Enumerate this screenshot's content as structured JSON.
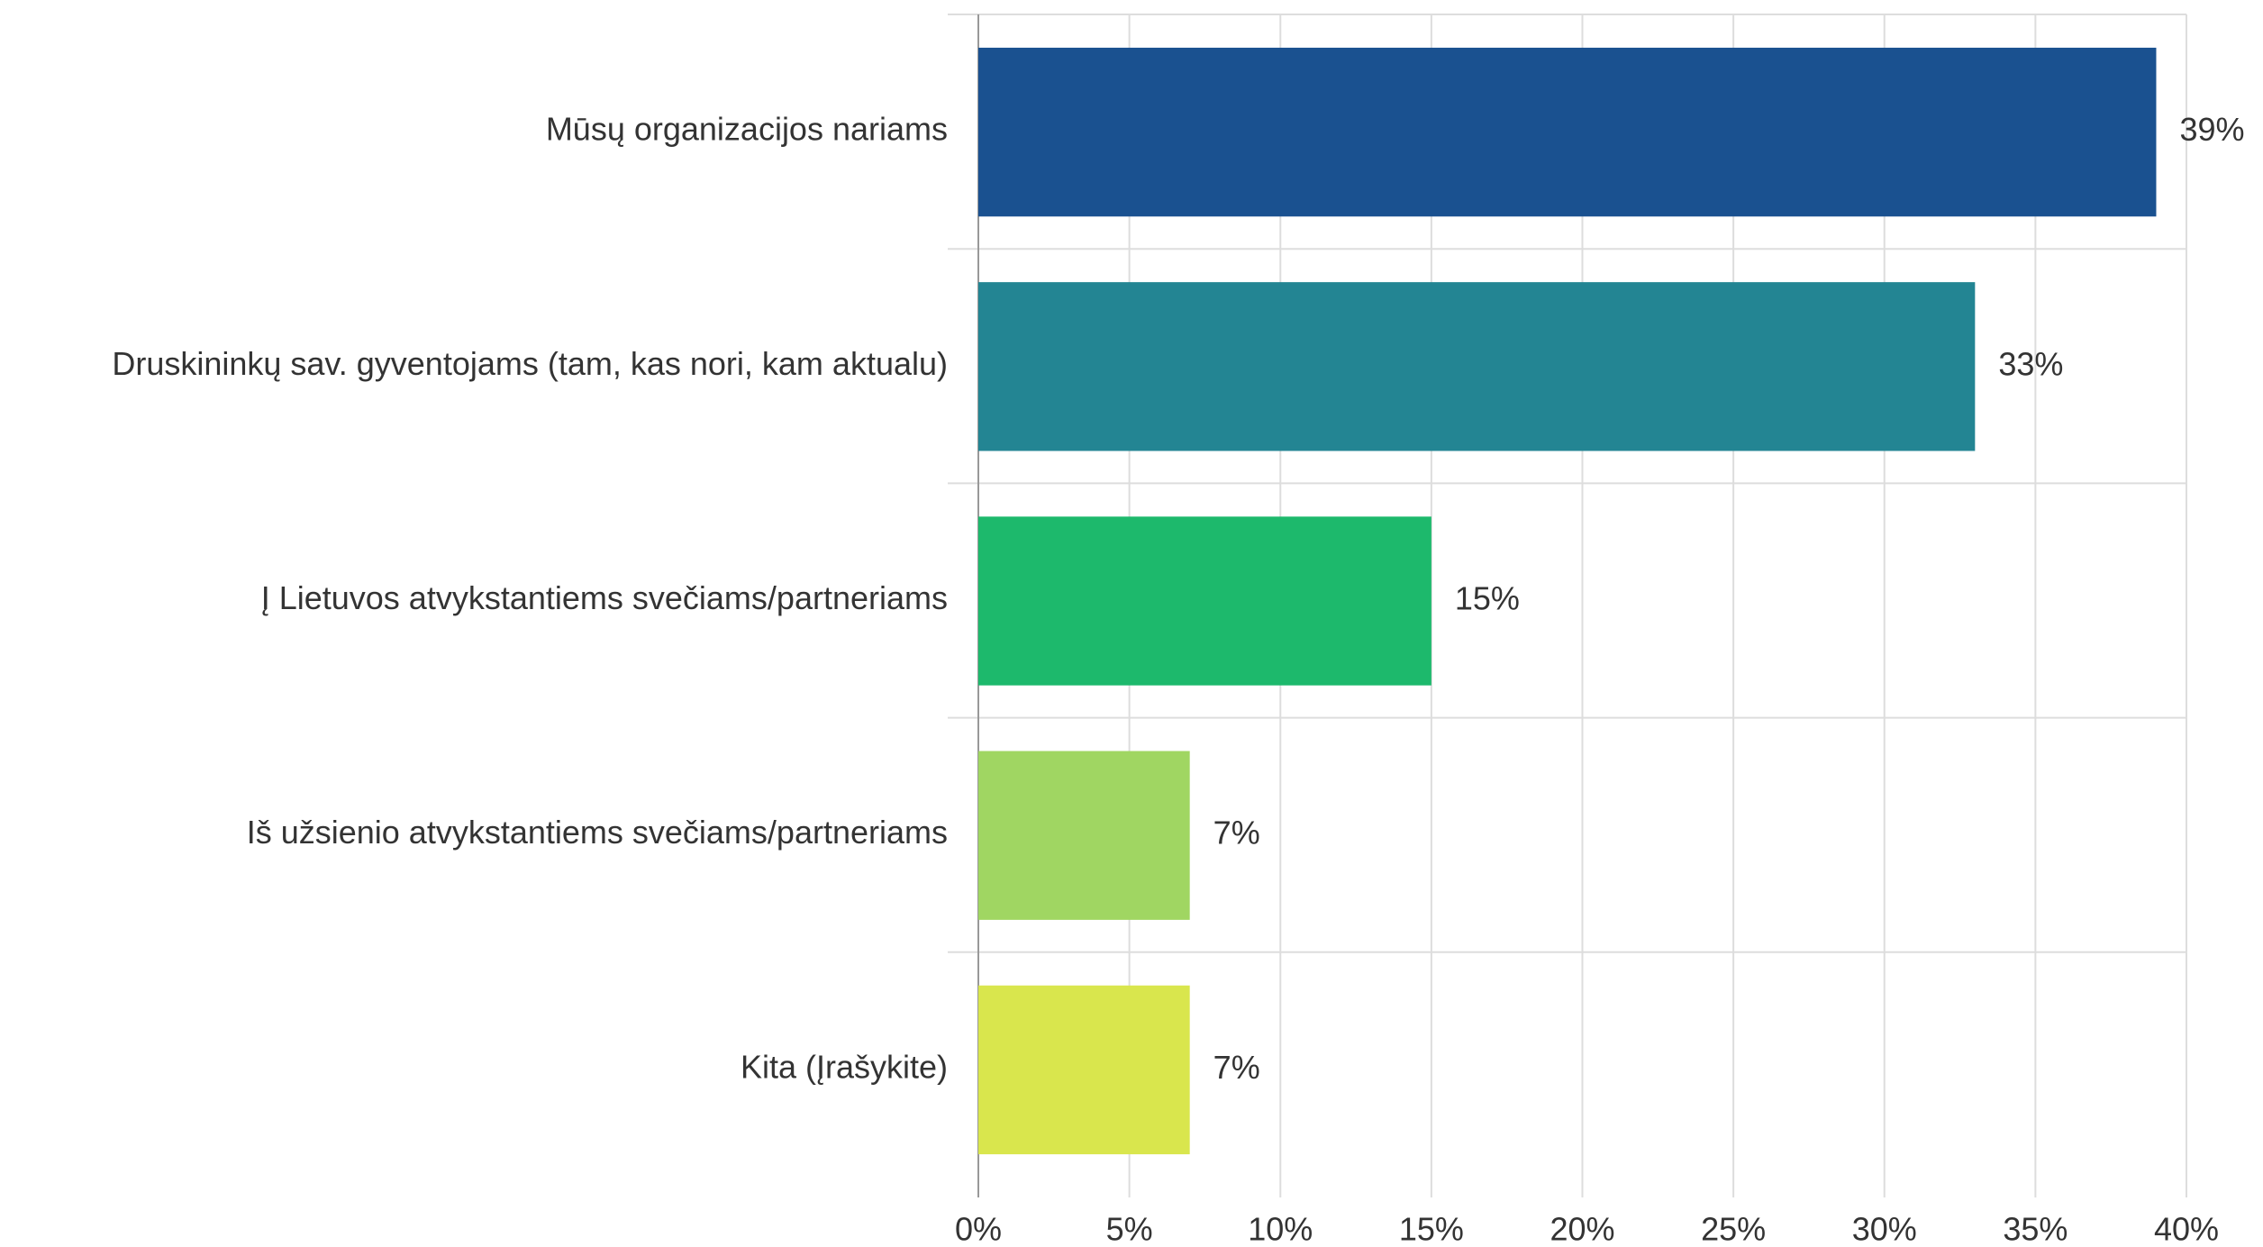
{
  "chart_data": {
    "type": "barh",
    "categories": [
      "Mūsų organizacijos nariams",
      "Druskininkų sav. gyventojams (tam, kas nori, kam aktualu)",
      "Į Lietuvos atvykstantiems svečiams/partneriams",
      "Iš užsienio atvykstantiems svečiams/partneriams",
      "Kita (Įrašykite)"
    ],
    "values": [
      39,
      33,
      15,
      7,
      7
    ],
    "value_labels": [
      "39%",
      "33%",
      "15%",
      "7%",
      "7%"
    ],
    "colors": [
      "#1a5190",
      "#238593",
      "#1db96c",
      "#a0d662",
      "#d9e64d"
    ],
    "xlim": [
      0,
      40
    ],
    "xticks": [
      {
        "value": 0,
        "label": "0%"
      },
      {
        "value": 5,
        "label": "5%"
      },
      {
        "value": 10,
        "label": "10%"
      },
      {
        "value": 15,
        "label": "15%"
      },
      {
        "value": 20,
        "label": "20%"
      },
      {
        "value": 25,
        "label": "25%"
      },
      {
        "value": 30,
        "label": "30%"
      },
      {
        "value": 35,
        "label": "35%"
      },
      {
        "value": 40,
        "label": "40%"
      }
    ],
    "grid": true
  }
}
